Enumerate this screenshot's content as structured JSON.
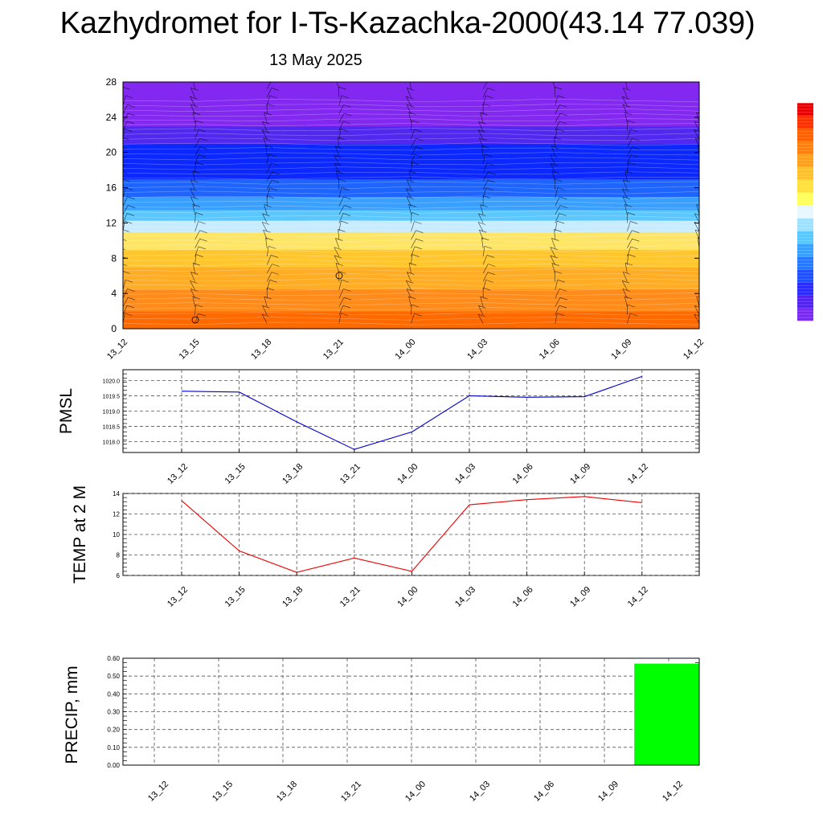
{
  "title": "Kazhydromet for I-Ts-Kazachka-2000(43.14 77.039)",
  "subtitle": "13 May 2025",
  "colors": {
    "pmsl_line": "#0000cc",
    "temp_line": "#ee0000",
    "precip_bar": "#00ff00",
    "grid": "#555555",
    "frame": "#000000"
  },
  "chart_data": [
    {
      "type": "heatmap",
      "variable": "vertical temperature cross-section with wind barbs",
      "x_labels": [
        "13_12",
        "13_15",
        "13_18",
        "13_21",
        "14_00",
        "14_03",
        "14_06",
        "14_09",
        "14_12"
      ],
      "y_ticks": [
        0,
        4,
        8,
        12,
        16,
        20,
        24,
        28
      ],
      "ylim": [
        0,
        28
      ],
      "color_bands": [
        {
          "from": 0,
          "to": 2,
          "color": "#ff6a00"
        },
        {
          "from": 2,
          "to": 4.5,
          "color": "#ff8c1a"
        },
        {
          "from": 4.5,
          "to": 7,
          "color": "#ffad24"
        },
        {
          "from": 7,
          "to": 9,
          "color": "#ffc62e"
        },
        {
          "from": 9,
          "to": 11,
          "color": "#ffe566"
        },
        {
          "from": 11,
          "to": 12.3,
          "color": "#c8ecff"
        },
        {
          "from": 12.3,
          "to": 13.5,
          "color": "#5ac8ff"
        },
        {
          "from": 13.5,
          "to": 15,
          "color": "#3aa0ff"
        },
        {
          "from": 15,
          "to": 17,
          "color": "#1e64ff"
        },
        {
          "from": 17,
          "to": 21,
          "color": "#0a28ff"
        },
        {
          "from": 21,
          "to": 23,
          "color": "#5028f0"
        },
        {
          "from": 23,
          "to": 28,
          "color": "#8228f0"
        }
      ],
      "colorbar": [
        "#7828f0",
        "#5020f0",
        "#2828ff",
        "#1e50ff",
        "#2878ff",
        "#3aa0ff",
        "#5ac8ff",
        "#a0e0ff",
        "#e8f6ff",
        "#ffff60",
        "#ffe040",
        "#ffc030",
        "#ffa020",
        "#ff8010",
        "#ff6000",
        "#ff3000",
        "#e80000",
        "#ffffff"
      ]
    },
    {
      "type": "line",
      "ylabel": "PMSL",
      "x": [
        "13_12",
        "13_15",
        "13_18",
        "13_21",
        "14_00",
        "14_03",
        "14_06",
        "14_09",
        "14_12"
      ],
      "series": [
        {
          "values": [
            1019.65,
            1019.62,
            1018.65,
            1017.75,
            1018.32,
            1019.5,
            1019.45,
            1019.47,
            1020.13
          ]
        }
      ],
      "y_ticks": [
        "1018.0",
        "1018.5",
        "1019.0",
        "1019.5",
        "1020.0"
      ],
      "ylim": [
        1017.65,
        1020.35
      ],
      "grid": true
    },
    {
      "type": "line",
      "ylabel": "TEMP at 2 M",
      "x": [
        "13_12",
        "13_15",
        "13_18",
        "13_21",
        "14_00",
        "14_03",
        "14_06",
        "14_09",
        "14_12"
      ],
      "series": [
        {
          "values": [
            13.3,
            8.4,
            6.3,
            7.7,
            6.4,
            12.9,
            13.4,
            13.7,
            13.1
          ]
        }
      ],
      "y_ticks": [
        "6",
        "8",
        "10",
        "12",
        "14"
      ],
      "ylim": [
        6,
        14
      ],
      "grid": true
    },
    {
      "type": "bar",
      "ylabel": "PRECIP, mm",
      "categories": [
        "13_12",
        "13_15",
        "13_18",
        "13_21",
        "14_00",
        "14_03",
        "14_06",
        "14_09",
        "14_12"
      ],
      "values": [
        0,
        0,
        0,
        0,
        0,
        0,
        0,
        0,
        0.57
      ],
      "y_ticks": [
        "0.00",
        "0.10",
        "0.20",
        "0.30",
        "0.40",
        "0.50",
        "0.60"
      ],
      "ylim": [
        0,
        0.6
      ],
      "grid": true
    }
  ]
}
